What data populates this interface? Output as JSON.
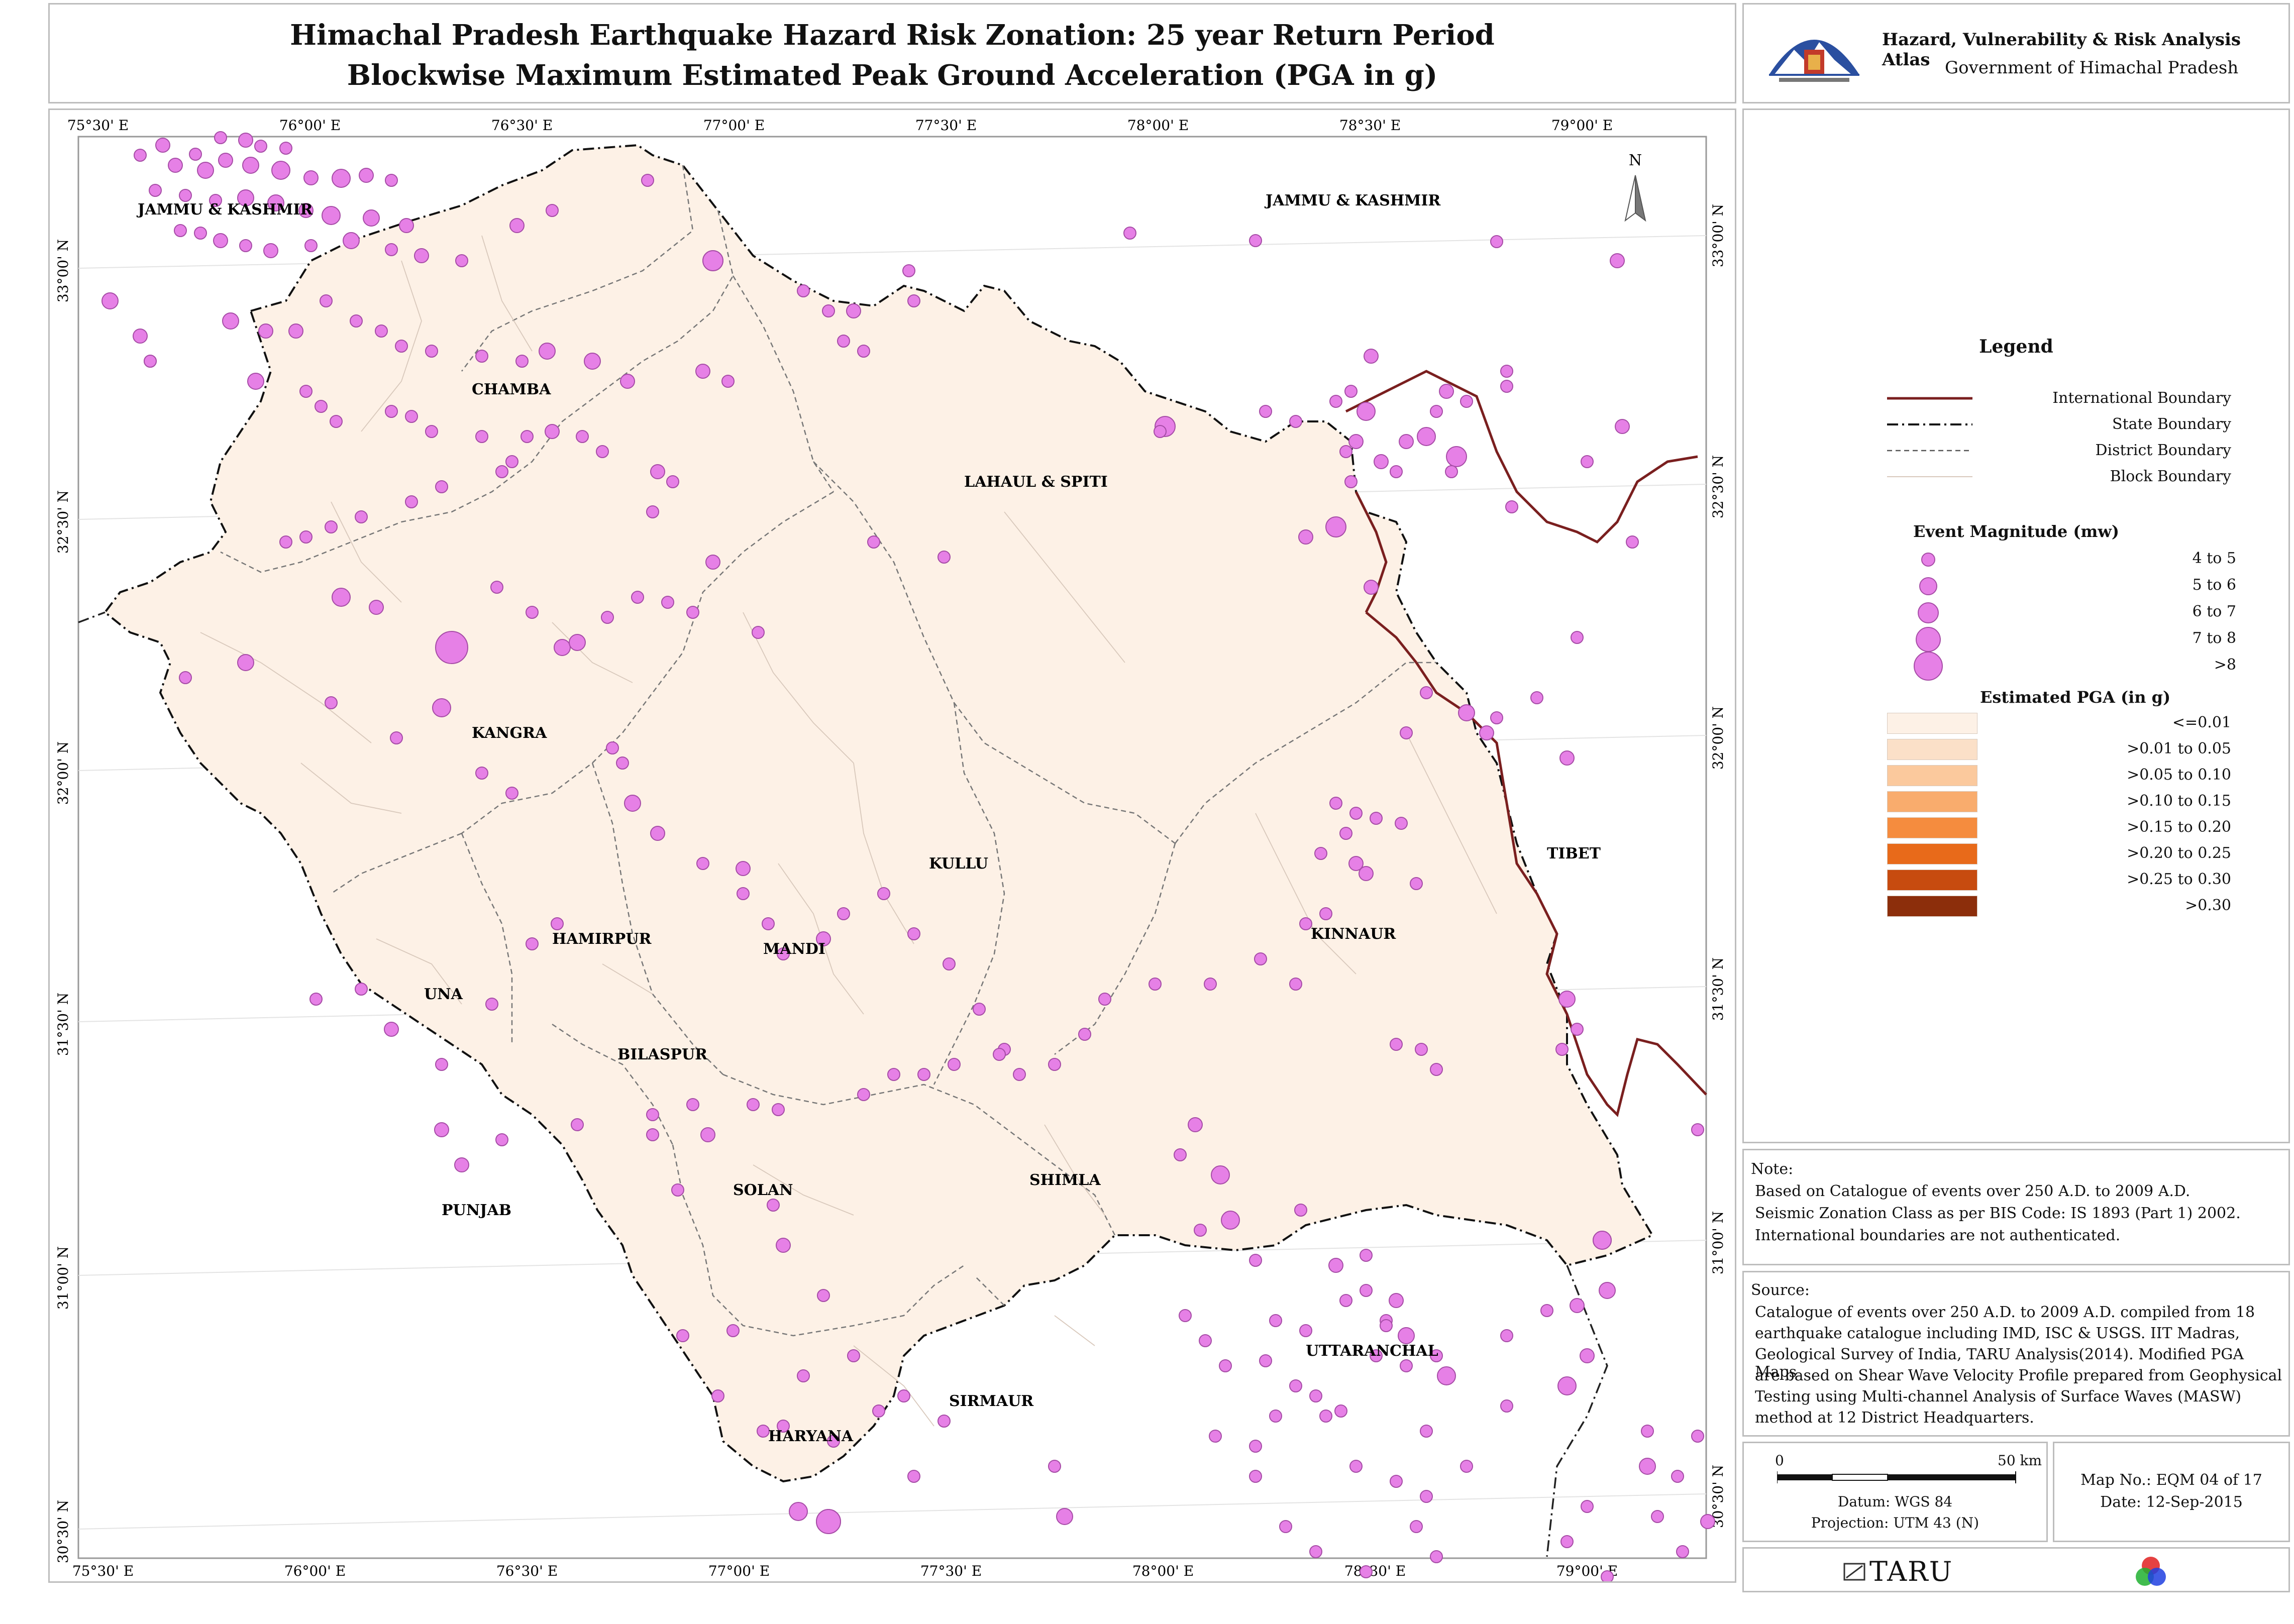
{
  "title": {
    "line1": "Himachal Pradesh Earthquake Hazard Risk Zonation: 25 year Return Period",
    "line2": "Blockwise Maximum Estimated Peak Ground Acceleration (PGA in g)"
  },
  "atlas": {
    "name": "Hazard, Vulnerability & Risk Analysis Atlas",
    "government": "Government of Himachal Pradesh",
    "logo_icon": "state-emblem-icon"
  },
  "map": {
    "lon_ticks": [
      "75°30' E",
      "76°00' E",
      "76°30' E",
      "77°00' E",
      "77°30' E",
      "78°00' E",
      "78°30' E",
      "79°00' E"
    ],
    "lat_ticks": [
      "33°00' N",
      "32°30' N",
      "32°00' N",
      "31°30' N",
      "31°00' N",
      "30°30' N"
    ],
    "north_label": "N",
    "regions": [
      {
        "label": "JAMMU & KASHMIR",
        "kind": "state"
      },
      {
        "label": "JAMMU & KASHMIR",
        "kind": "state"
      },
      {
        "label": "CHAMBA",
        "kind": "district"
      },
      {
        "label": "LAHAUL & SPITI",
        "kind": "district"
      },
      {
        "label": "KANGRA",
        "kind": "district"
      },
      {
        "label": "KULLU",
        "kind": "district"
      },
      {
        "label": "TIBET",
        "kind": "country"
      },
      {
        "label": "HAMIRPUR",
        "kind": "district"
      },
      {
        "label": "MANDI",
        "kind": "district"
      },
      {
        "label": "KINNAUR",
        "kind": "district"
      },
      {
        "label": "UNA",
        "kind": "district"
      },
      {
        "label": "BILASPUR",
        "kind": "district"
      },
      {
        "label": "PUNJAB",
        "kind": "state"
      },
      {
        "label": "SOLAN",
        "kind": "district"
      },
      {
        "label": "SHIMLA",
        "kind": "district"
      },
      {
        "label": "UTTARANCHAL",
        "kind": "state"
      },
      {
        "label": "SIRMAUR",
        "kind": "district"
      },
      {
        "label": "HARYANA",
        "kind": "state"
      }
    ],
    "colors": {
      "hp_fill": "#fdf1e6",
      "event_fill": "#e680e6",
      "event_stroke": "#a64ca6",
      "international": "#7a1f1f"
    }
  },
  "legend": {
    "title": "Legend",
    "lines": [
      {
        "label": "International Boundary",
        "style": "international"
      },
      {
        "label": "State Boundary",
        "style": "state"
      },
      {
        "label": "District Boundary",
        "style": "district"
      },
      {
        "label": "Block Boundary",
        "style": "block"
      }
    ],
    "magnitude_title": "Event Magnitude (mw)",
    "magnitudes": [
      {
        "label": "4 to 5",
        "size": 1
      },
      {
        "label": "5 to 6",
        "size": 2
      },
      {
        "label": "6 to 7",
        "size": 3
      },
      {
        "label": "7 to 8",
        "size": 4
      },
      {
        "label": ">8",
        "size": 5
      }
    ],
    "pga_title": "Estimated PGA (in g)",
    "pga_classes": [
      {
        "label": "<=0.01",
        "color": "#fdf1e6"
      },
      {
        "label": ">0.01 to 0.05",
        "color": "#fbe0c8"
      },
      {
        "label": ">0.05 to 0.10",
        "color": "#fbc99d"
      },
      {
        "label": ">0.10 to 0.15",
        "color": "#f9ac6d"
      },
      {
        "label": ">0.15 to 0.20",
        "color": "#f58c3e"
      },
      {
        "label": ">0.20 to 0.25",
        "color": "#e86a1a"
      },
      {
        "label": ">0.25 to 0.30",
        "color": "#c74b0f"
      },
      {
        "label": ">0.30",
        "color": "#8c2e0b"
      }
    ]
  },
  "note": {
    "heading": "Note:",
    "lines": [
      "Based on Catalogue of events over 250 A.D. to 2009 A.D.",
      "Seismic Zonation Class as per BIS Code: IS 1893 (Part 1) 2002.",
      "International boundaries are not authenticated."
    ]
  },
  "source": {
    "heading": "Source:",
    "lines": [
      "Catalogue of events over 250 A.D. to 2009 A.D. compiled from 18",
      "earthquake catalogue including IMD, ISC & USGS. IIT Madras,",
      "Geological Survey of India, TARU Analysis(2014). Modified PGA Maps",
      "are based on Shear Wave Velocity Profile prepared from Geophysical",
      "Testing using Multi-channel Analysis of Surface Waves (MASW)",
      "method at 12 District Headquarters."
    ]
  },
  "scale": {
    "start": "0",
    "end": "50 km",
    "datum": "Datum: WGS 84",
    "projection": "Projection: UTM 43 (N)"
  },
  "mapinfo": {
    "map_no": "Map No.: EQM 04 of 17",
    "date": "Date: 12-Sep-2015"
  },
  "footer": {
    "taru": "TARU",
    "taru_icon": "taru-logo-icon",
    "rgb_icon": "rgb-circles-icon"
  }
}
